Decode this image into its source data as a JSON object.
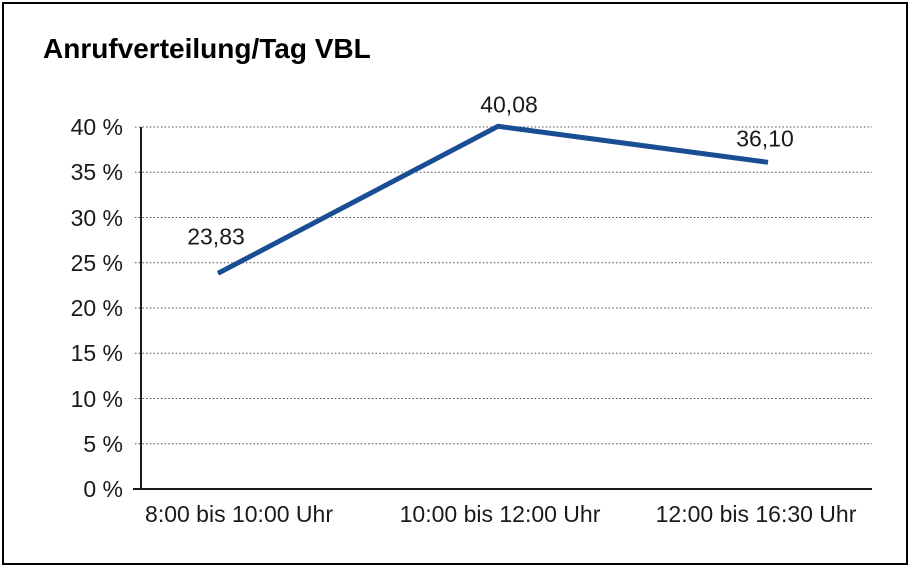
{
  "chart_data": {
    "type": "line",
    "title": "Anrufverteilung/Tag VBL",
    "categories": [
      "8:00 bis 10:00 Uhr",
      "10:00 bis 12:00 Uhr",
      "12:00 bis 16:30 Uhr"
    ],
    "series": [
      {
        "name": "Anrufverteilung",
        "values": [
          23.83,
          40.08,
          36.1
        ],
        "data_labels": [
          "23,83",
          "40,08",
          "36,10"
        ]
      }
    ],
    "xlabel": "",
    "ylabel": "",
    "ylim": [
      0,
      40
    ],
    "ytick_step": 5,
    "ytick_labels": [
      "0 %",
      "5 %",
      "10 %",
      "15 %",
      "20 %",
      "25 %",
      "30 %",
      "35 %",
      "40 %"
    ],
    "grid": "horizontal-dotted",
    "legend": "none",
    "markers": "none",
    "colors": {
      "line": "#1a4e94",
      "gridline": "#4d4d4d",
      "axis": "#1a1a1a",
      "text": "#1a1a1a",
      "frame_border": "#000000",
      "background": "#ffffff"
    }
  }
}
